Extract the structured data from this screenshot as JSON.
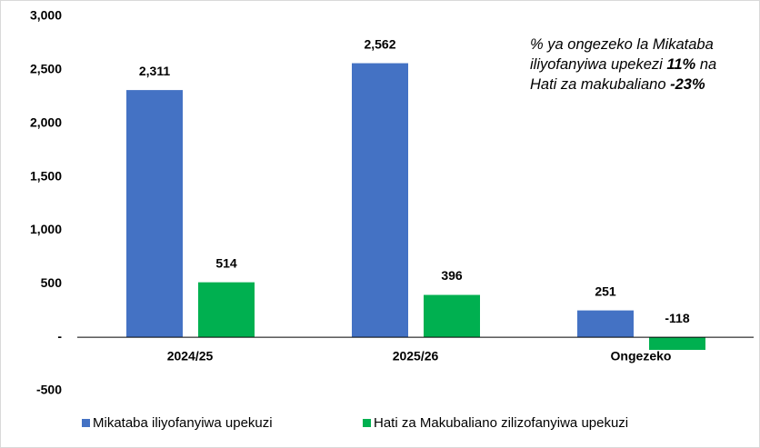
{
  "chart_data": {
    "type": "bar",
    "categories": [
      "2024/25",
      "2025/26",
      "Ongezeko"
    ],
    "series": [
      {
        "name": "Mikataba iliyofanyiwa upekuzi",
        "color": "#4472c4",
        "values": [
          2311,
          2562,
          251
        ],
        "value_labels": [
          "2,311",
          "2,562",
          "251"
        ]
      },
      {
        "name": "Hati za Makubaliano zilizofanyiwa upekuzi",
        "color": "#00b050",
        "values": [
          514,
          396,
          -118
        ],
        "value_labels": [
          "514",
          "396",
          "-118"
        ]
      }
    ],
    "ylim": [
      -500,
      3000
    ],
    "yticks": [
      -500,
      {
        "value": 0,
        "label": "-"
      },
      500,
      {
        "value": 1000,
        "label": "1,000"
      },
      {
        "value": 1500,
        "label": "1,500"
      },
      {
        "value": 2000,
        "label": "2,000"
      },
      {
        "value": 2500,
        "label": "2,500"
      },
      {
        "value": 3000,
        "label": "3,000"
      }
    ],
    "grid": false,
    "legend": "bottom",
    "annotation": [
      "% ya ongezeko la Mikataba iliyofanyiwa upekezi",
      "11%",
      "na Hati za makubaliano",
      "-23%"
    ]
  }
}
